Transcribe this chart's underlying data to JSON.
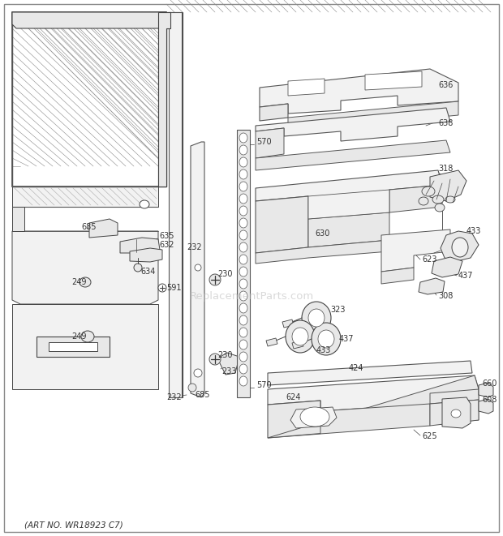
{
  "art_no": "(ART NO. WR18923 C7)",
  "background_color": "#ffffff",
  "fig_width": 6.2,
  "fig_height": 6.61,
  "dpi": 100,
  "watermark": "ReplacementParts.com",
  "watermark_color": "#bbbbbb",
  "watermark_alpha": 0.55
}
